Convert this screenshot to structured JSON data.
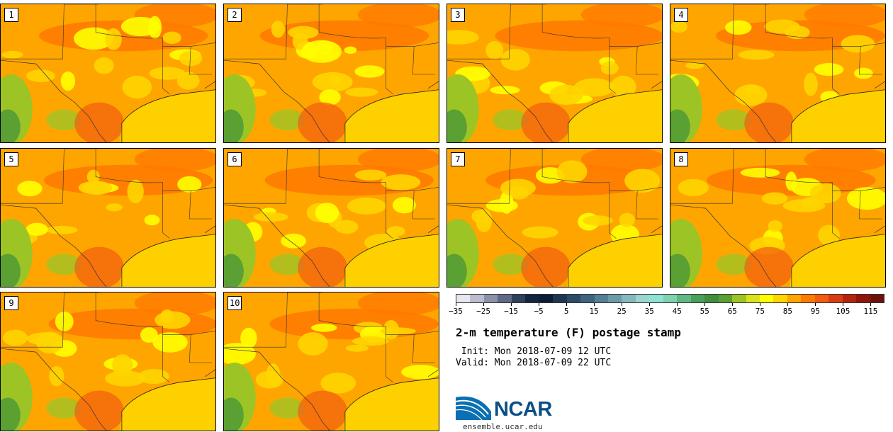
{
  "members": [
    {
      "label": "1"
    },
    {
      "label": "2"
    },
    {
      "label": "3"
    },
    {
      "label": "4"
    },
    {
      "label": "5"
    },
    {
      "label": "6"
    },
    {
      "label": "7"
    },
    {
      "label": "8"
    },
    {
      "label": "9"
    },
    {
      "label": "10"
    }
  ],
  "colorbar": {
    "colors": [
      "#e7e7ef",
      "#bbbdcf",
      "#8c91a8",
      "#5f6b86",
      "#2f3f5c",
      "#142443",
      "#0e1b36",
      "#1f3653",
      "#2e4a69",
      "#3e6480",
      "#547f95",
      "#6b9ba8",
      "#85b9bd",
      "#9bd5d0",
      "#8ee2d2",
      "#7fd1b0",
      "#61b885",
      "#4a9f5a",
      "#3f8f3c",
      "#5aa032",
      "#9dc425",
      "#d9e31c",
      "#ffff00",
      "#ffd500",
      "#ffa500",
      "#ff7b00",
      "#f25c10",
      "#d83d12",
      "#b3240f",
      "#8e160c",
      "#6b130b"
    ],
    "tick_labels": [
      "−35",
      "−25",
      "−15",
      "−5",
      "5",
      "15",
      "25",
      "35",
      "45",
      "55",
      "65",
      "75",
      "85",
      "95",
      "105",
      "115"
    ]
  },
  "title": "2-m temperature (F) postage stamp",
  "init_line": " Init: Mon 2018-07-09 12 UTC",
  "valid_line": "Valid: Mon 2018-07-09 22 UTC",
  "logo": {
    "text": "NCAR",
    "url": "ensemble.ucar.edu"
  },
  "map_colors": {
    "base": "#ffa500",
    "warm": "#ff7b00",
    "mild": "#ffd500",
    "cool": "#ffff00",
    "green": "#9dc425",
    "dark_green": "#5aa032",
    "gulf": "#ffd000",
    "hot": "#f25c10"
  }
}
